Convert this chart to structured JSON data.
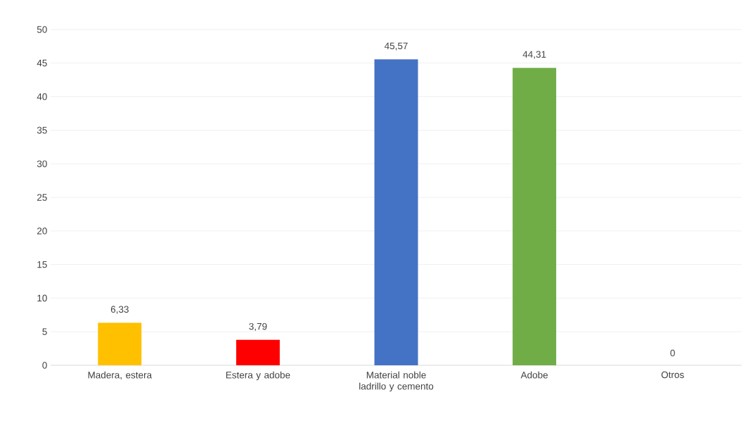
{
  "chart_data": {
    "type": "bar",
    "categories": [
      "Madera, estera",
      "Estera y adobe",
      "Material noble ladrillo y cemento",
      "Adobe",
      "Otros"
    ],
    "values": [
      6.33,
      3.79,
      45.57,
      44.31,
      0
    ],
    "value_labels": [
      "6,33",
      "3,79",
      "45,57",
      "44,31",
      "0"
    ],
    "colors": [
      "#ffc000",
      "#ff0000",
      "#4472c4",
      "#70ad47",
      "#a5a5a5"
    ],
    "ylim": [
      0,
      50
    ],
    "yticks": [
      0,
      5,
      10,
      15,
      20,
      25,
      30,
      35,
      40,
      45,
      50
    ],
    "grid": "y"
  }
}
